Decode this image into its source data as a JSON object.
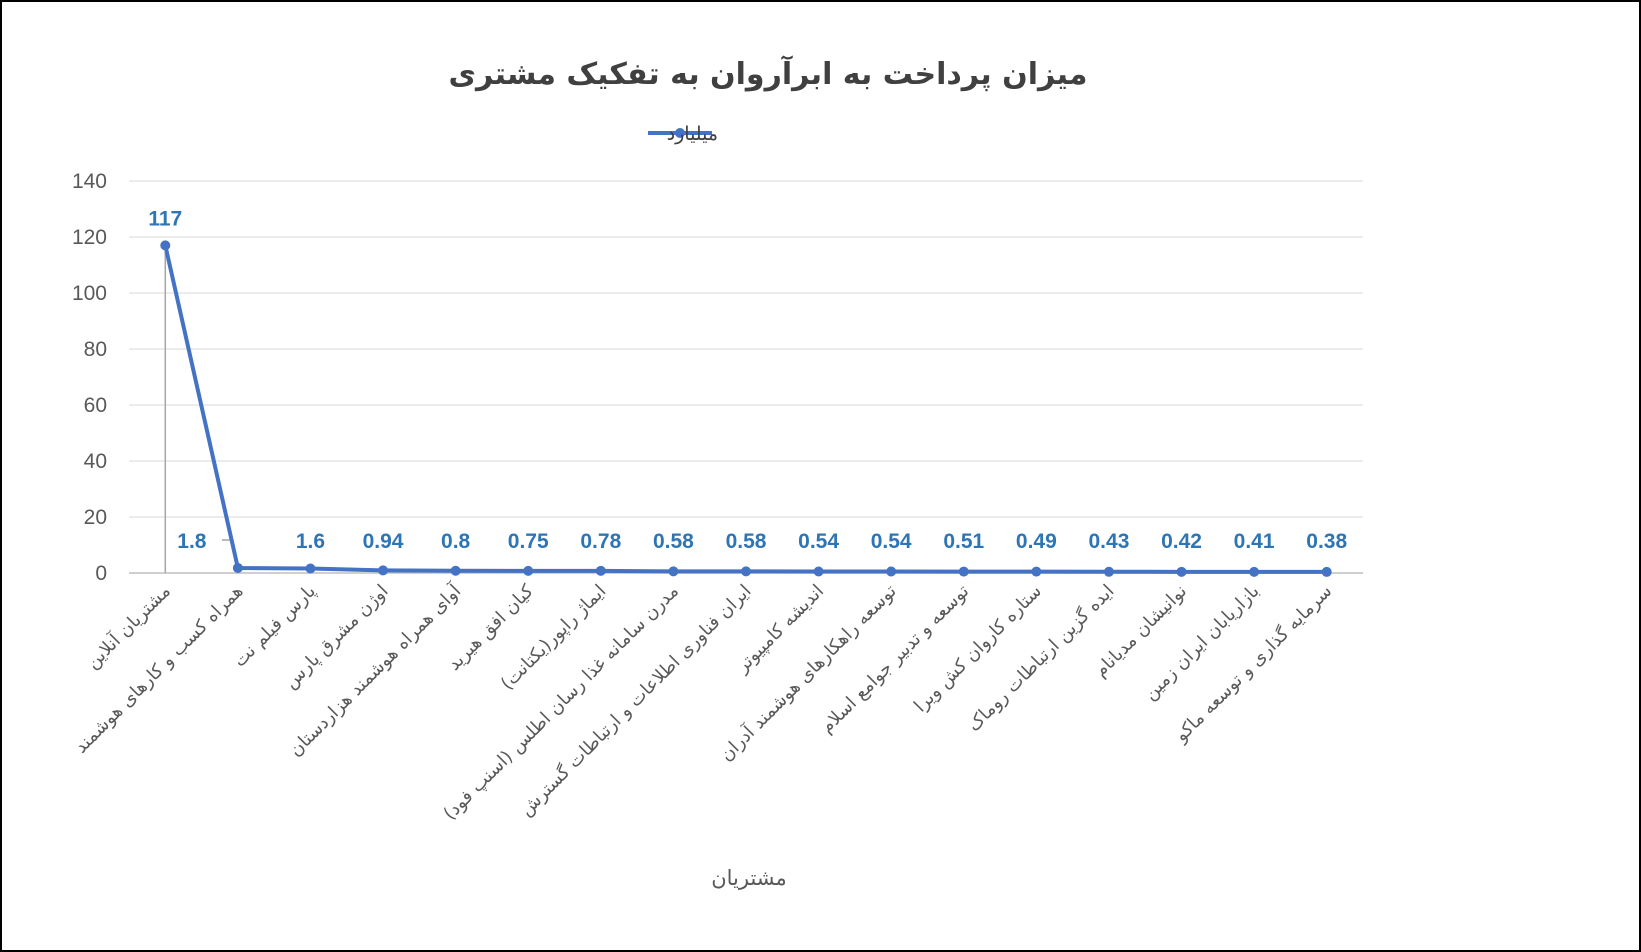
{
  "chart_data": {
    "type": "line",
    "title": "میزان پرداخت به ابرآروان به تفکیک مشتری",
    "xlabel": "مشتریان",
    "ylabel": "",
    "ylim": [
      0,
      140
    ],
    "yticks": [
      "0",
      "20",
      "40",
      "60",
      "80",
      "100",
      "120",
      "140"
    ],
    "grid": true,
    "legend_position": "top",
    "categories": [
      "مشتریان آنلاین",
      "همراه کسب و کارهای هوشمند",
      "پارس فیلم نت",
      "اوژن مشرق پارس",
      "آوای همراه هوشمند هزاردستان",
      "کیان افق هیرید",
      "ایماژ راپور(یکتانت)",
      "مدرن سامانه غذا رسان اطلس (اسنپ فود)",
      "ایران فناوری اطلاعات و ارتباطات گسترش",
      "اندیشه کامپیوتر",
      "توسعه راهکارهای هوشمند آدران",
      "توسعه و تدبیر جوامع اسلام",
      "ستاره کاروان کش ویرا",
      "ایده گزین ارتباطات روماک",
      "نوانیشان مدیانام",
      "بازاریابان ایران زمین",
      "سرمایه گذاری و توسعه ماکو"
    ],
    "series": [
      {
        "name": "میلیارد",
        "color": "#4472C4",
        "values": [
          117,
          1.8,
          1.6,
          0.94,
          0.8,
          0.75,
          0.78,
          0.58,
          0.58,
          0.54,
          0.54,
          0.51,
          0.49,
          0.43,
          0.42,
          0.41,
          0.38
        ],
        "labels": [
          "117",
          "1.8",
          "1.6",
          "0.94",
          "0.8",
          "0.75",
          "0.78",
          "0.58",
          "0.58",
          "0.54",
          "0.54",
          "0.51",
          "0.49",
          "0.43",
          "0.42",
          "0.41",
          "0.38"
        ]
      }
    ]
  }
}
